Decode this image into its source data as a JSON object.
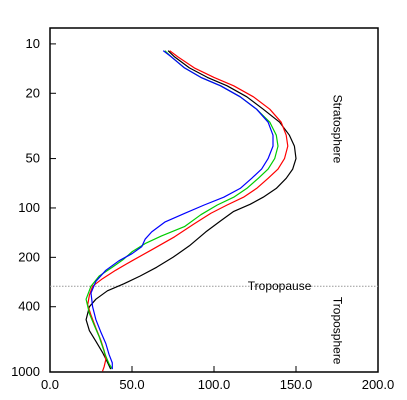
{
  "chart_data": {
    "type": "line",
    "title": "",
    "xlabel": "",
    "ylabel": "",
    "xlim": [
      0,
      200
    ],
    "ylim": [
      1000,
      8
    ],
    "y_scale": "log",
    "y_inverted": true,
    "grid": false,
    "legend": "none",
    "x_tick_labels": [
      "0.0",
      "50.0",
      "100.0",
      "150.0",
      "200.0"
    ],
    "x_ticks": [
      0,
      50,
      100,
      150,
      200
    ],
    "y_tick_labels": [
      "10",
      "20",
      "50",
      "100",
      "200",
      "400",
      "1000"
    ],
    "y_ticks": [
      10,
      20,
      50,
      100,
      200,
      400,
      1000
    ],
    "reference_line": {
      "y": 300,
      "label": "Tropopause",
      "color": "#999999"
    },
    "annotations": [
      {
        "text": "Stratosphere",
        "x": 173,
        "y": 33
      },
      {
        "text": "Troposphere",
        "x": 173,
        "y": 560
      }
    ],
    "series": [
      {
        "color": "#000000",
        "x": [
          72,
          76,
          85,
          96,
          108,
          120,
          130,
          140,
          146,
          149,
          150,
          148,
          144,
          138,
          130,
          122,
          112,
          104,
          95,
          85,
          75,
          65,
          55,
          45,
          35,
          28,
          24,
          22,
          24,
          28,
          32,
          35,
          37
        ],
        "y": [
          11,
          12,
          14,
          16,
          18,
          21,
          25,
          30,
          36,
          42,
          50,
          58,
          66,
          76,
          86,
          95,
          105,
          120,
          140,
          170,
          200,
          230,
          260,
          290,
          320,
          360,
          400,
          480,
          560,
          650,
          760,
          870,
          960
        ]
      },
      {
        "color": "#ff0000",
        "x": [
          73,
          78,
          88,
          100,
          112,
          124,
          134,
          141,
          144,
          145,
          143,
          139,
          133,
          126,
          118,
          108,
          98,
          88,
          76,
          62,
          50,
          40,
          32,
          26,
          24,
          23,
          25,
          28,
          31,
          33,
          34,
          33,
          32
        ],
        "y": [
          11,
          12,
          14,
          16,
          18,
          21,
          25,
          30,
          36,
          42,
          50,
          58,
          66,
          76,
          86,
          96,
          108,
          125,
          150,
          180,
          210,
          240,
          270,
          300,
          340,
          390,
          450,
          540,
          640,
          740,
          840,
          930,
          990
        ]
      },
      {
        "color": "#00cc00",
        "x": [
          70,
          74,
          82,
          92,
          104,
          116,
          126,
          134,
          138,
          139,
          137,
          133,
          127,
          120,
          112,
          102,
          92,
          82,
          68,
          58,
          50,
          45,
          38,
          30,
          25,
          22,
          24,
          27,
          30,
          32,
          34,
          36,
          38
        ],
        "y": [
          11,
          12,
          14,
          16,
          18,
          21,
          25,
          30,
          36,
          42,
          50,
          58,
          66,
          76,
          86,
          96,
          110,
          130,
          148,
          165,
          185,
          205,
          230,
          260,
          300,
          360,
          440,
          520,
          610,
          700,
          800,
          890,
          960
        ]
      },
      {
        "color": "#0000ff",
        "x": [
          69,
          74,
          82,
          92,
          104,
          116,
          126,
          133,
          136,
          136,
          133,
          129,
          123,
          116,
          106,
          94,
          82,
          70,
          62,
          58,
          56,
          50,
          42,
          34,
          28,
          25,
          26,
          28,
          31,
          34,
          36,
          38,
          38
        ],
        "y": [
          11,
          12,
          14,
          16,
          18,
          21,
          25,
          30,
          36,
          42,
          50,
          58,
          66,
          76,
          86,
          96,
          108,
          122,
          140,
          155,
          172,
          190,
          210,
          240,
          280,
          330,
          400,
          480,
          570,
          670,
          780,
          880,
          960
        ]
      }
    ]
  }
}
